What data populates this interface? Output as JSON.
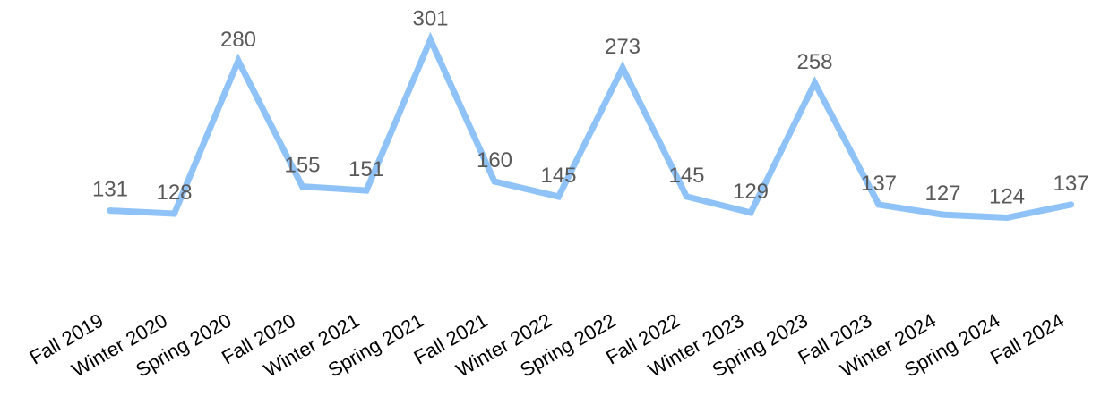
{
  "chart_data": {
    "type": "line",
    "title": "",
    "xlabel": "",
    "ylabel": "",
    "categories": [
      "Fall 2019",
      "Winter 2020",
      "Spring 2020",
      "Fall 2020",
      "Winter 2021",
      "Spring 2021",
      "Fall 2021",
      "Winter 2022",
      "Spring 2022",
      "Fall 2022",
      "Winter 2023",
      "Spring 2023",
      "Fall 2023",
      "Winter 2024",
      "Spring 2024",
      "Fall 2024"
    ],
    "series": [
      {
        "values": [
          131,
          128,
          280,
          155,
          151,
          301,
          160,
          145,
          273,
          145,
          129,
          258,
          137,
          127,
          124,
          137
        ],
        "color": "#8fc3f8"
      }
    ],
    "data_labels": true,
    "ylim": [
      0,
      340
    ],
    "grid": false,
    "legend": "none",
    "label_color": "#595959"
  }
}
